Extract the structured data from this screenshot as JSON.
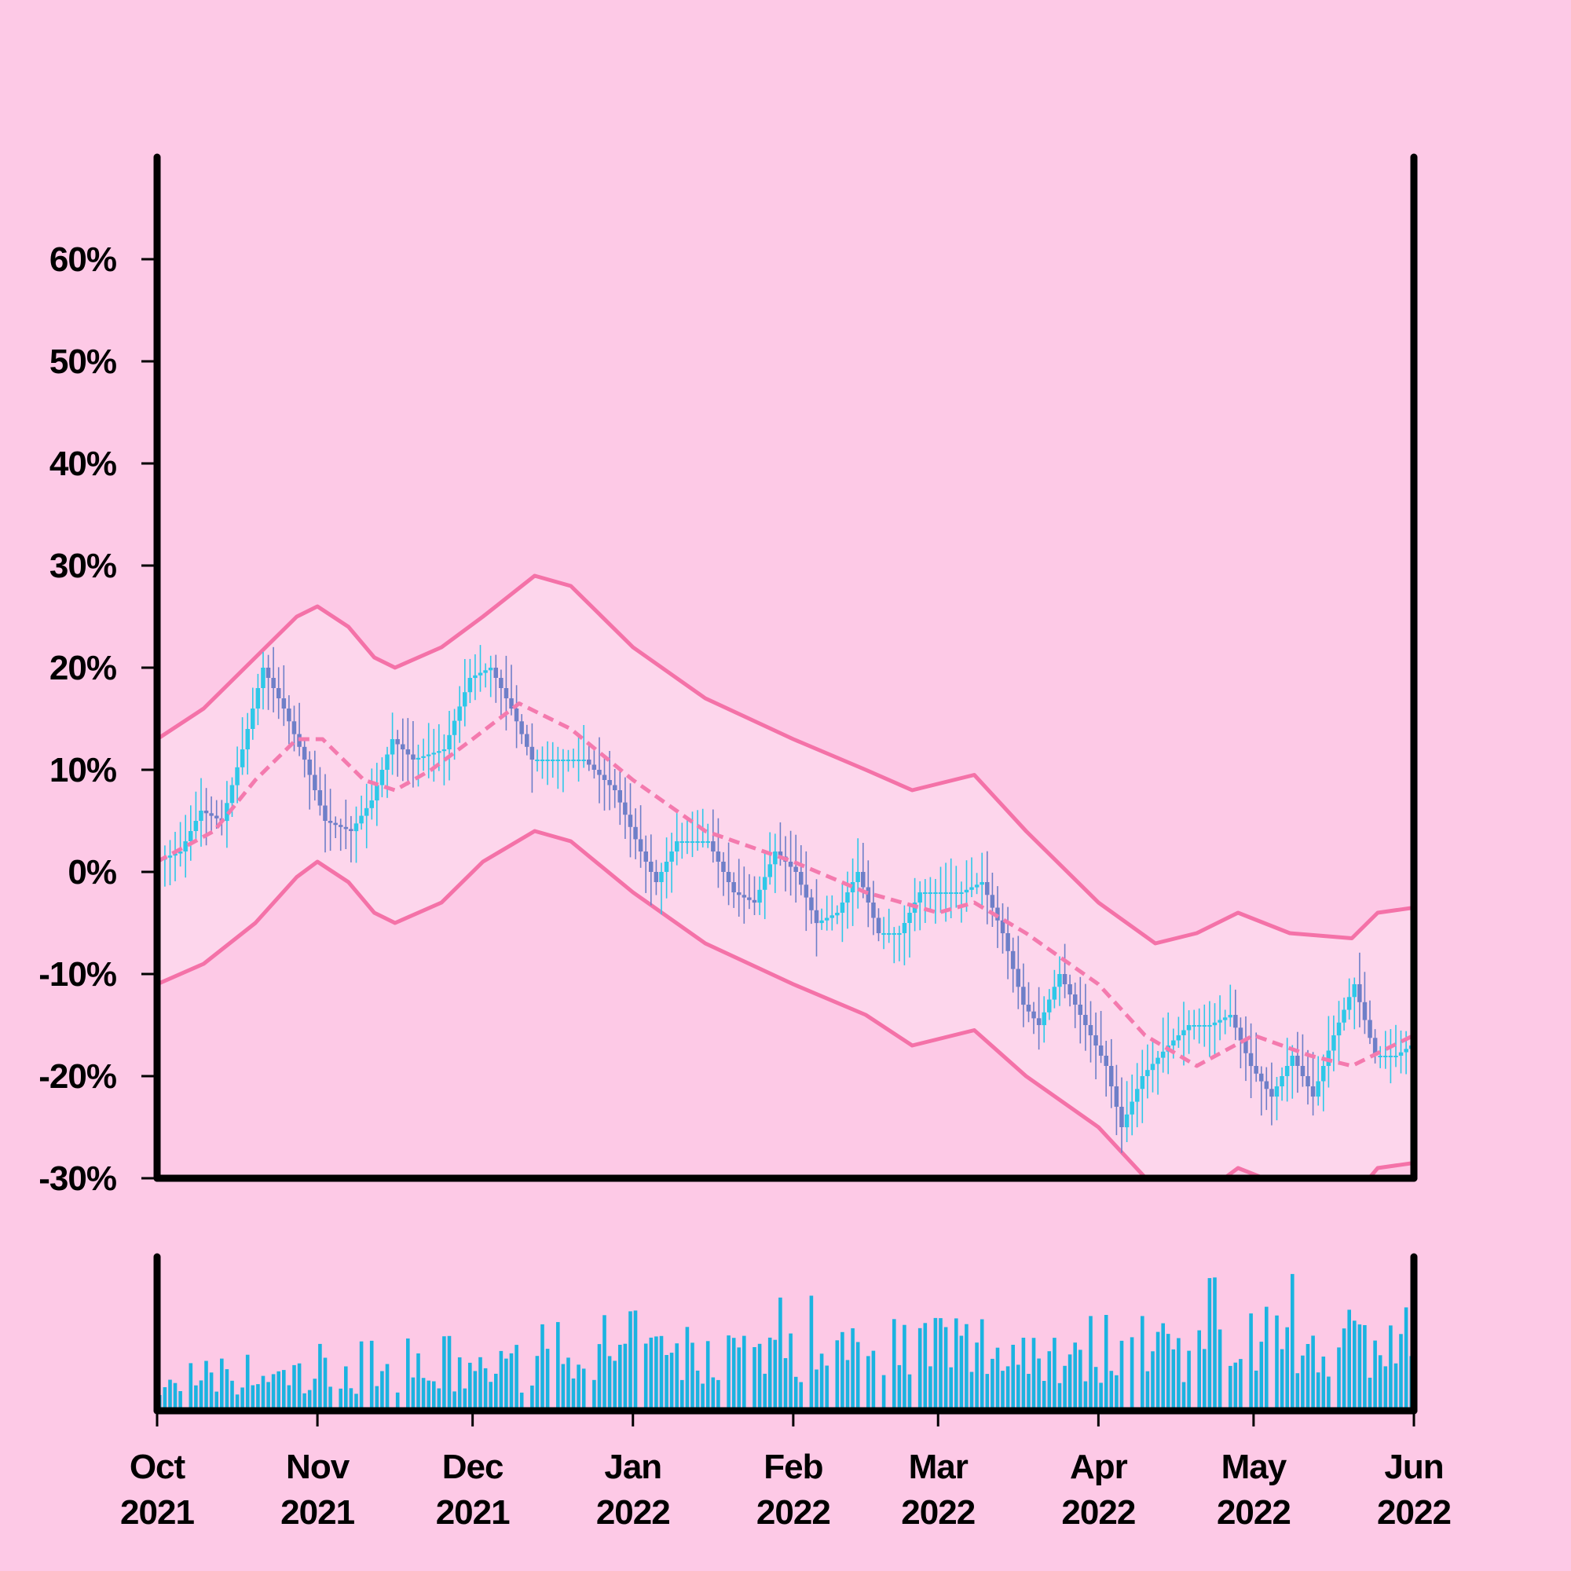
{
  "chart_data": {
    "type": "candlestick",
    "title": "",
    "xlabel": "",
    "ylabel": "",
    "yunit": "%",
    "ylim": [
      -30,
      70
    ],
    "yticks": [
      -30,
      -20,
      -10,
      0,
      10,
      20,
      30,
      40,
      50,
      60
    ],
    "ytick_labels": [
      "-30%",
      "-20%",
      "-10%",
      "0%",
      "10%",
      "20%",
      "30%",
      "40%",
      "50%",
      "60%"
    ],
    "xrange": [
      "2021-10-01",
      "2022-06-01"
    ],
    "xticks": [
      {
        "date": "2021-10-01",
        "month": "Oct",
        "year": "2021"
      },
      {
        "date": "2021-11-01",
        "month": "Nov",
        "year": "2021"
      },
      {
        "date": "2021-12-01",
        "month": "Dec",
        "year": "2021"
      },
      {
        "date": "2022-01-01",
        "month": "Jan",
        "year": "2022"
      },
      {
        "date": "2022-02-01",
        "month": "Feb",
        "year": "2022"
      },
      {
        "date": "2022-03-01",
        "month": "Mar",
        "year": "2022"
      },
      {
        "date": "2022-04-01",
        "month": "Apr",
        "year": "2022"
      },
      {
        "date": "2022-05-01",
        "month": "May",
        "year": "2022"
      },
      {
        "date": "2022-06-01",
        "month": "Jun",
        "year": "2022"
      }
    ],
    "price_path": [
      {
        "date": "2021-10-01",
        "value": 1
      },
      {
        "date": "2021-10-06",
        "value": 2
      },
      {
        "date": "2021-10-10",
        "value": 6
      },
      {
        "date": "2021-10-14",
        "value": 5
      },
      {
        "date": "2021-10-18",
        "value": 12
      },
      {
        "date": "2021-10-22",
        "value": 20
      },
      {
        "date": "2021-10-26",
        "value": 16
      },
      {
        "date": "2021-10-30",
        "value": 11
      },
      {
        "date": "2021-11-03",
        "value": 5
      },
      {
        "date": "2021-11-08",
        "value": 4
      },
      {
        "date": "2021-11-12",
        "value": 7
      },
      {
        "date": "2021-11-16",
        "value": 13
      },
      {
        "date": "2021-11-20",
        "value": 11
      },
      {
        "date": "2021-11-26",
        "value": 12
      },
      {
        "date": "2021-12-01",
        "value": 19
      },
      {
        "date": "2021-12-05",
        "value": 20
      },
      {
        "date": "2021-12-09",
        "value": 16
      },
      {
        "date": "2021-12-13",
        "value": 11
      },
      {
        "date": "2021-12-18",
        "value": 11
      },
      {
        "date": "2021-12-23",
        "value": 11
      },
      {
        "date": "2021-12-29",
        "value": 8
      },
      {
        "date": "2022-01-03",
        "value": 2
      },
      {
        "date": "2022-01-06",
        "value": -1
      },
      {
        "date": "2022-01-10",
        "value": 3
      },
      {
        "date": "2022-01-16",
        "value": 3
      },
      {
        "date": "2022-01-21",
        "value": -2
      },
      {
        "date": "2022-01-25",
        "value": -3
      },
      {
        "date": "2022-01-29",
        "value": 2
      },
      {
        "date": "2022-02-02",
        "value": 0
      },
      {
        "date": "2022-02-06",
        "value": -5
      },
      {
        "date": "2022-02-10",
        "value": -4
      },
      {
        "date": "2022-02-14",
        "value": 0
      },
      {
        "date": "2022-02-18",
        "value": -6
      },
      {
        "date": "2022-02-22",
        "value": -6
      },
      {
        "date": "2022-02-26",
        "value": -2
      },
      {
        "date": "2022-03-02",
        "value": -2
      },
      {
        "date": "2022-03-06",
        "value": -2
      },
      {
        "date": "2022-03-10",
        "value": -1
      },
      {
        "date": "2022-03-14",
        "value": -6
      },
      {
        "date": "2022-03-18",
        "value": -13
      },
      {
        "date": "2022-03-21",
        "value": -15
      },
      {
        "date": "2022-03-25",
        "value": -10
      },
      {
        "date": "2022-03-29",
        "value": -14
      },
      {
        "date": "2022-04-03",
        "value": -19
      },
      {
        "date": "2022-04-06",
        "value": -25
      },
      {
        "date": "2022-04-10",
        "value": -20
      },
      {
        "date": "2022-04-15",
        "value": -17
      },
      {
        "date": "2022-04-19",
        "value": -15
      },
      {
        "date": "2022-04-23",
        "value": -15
      },
      {
        "date": "2022-04-27",
        "value": -14
      },
      {
        "date": "2022-05-01",
        "value": -19
      },
      {
        "date": "2022-05-05",
        "value": -22
      },
      {
        "date": "2022-05-09",
        "value": -18
      },
      {
        "date": "2022-05-13",
        "value": -22
      },
      {
        "date": "2022-05-17",
        "value": -16
      },
      {
        "date": "2022-05-21",
        "value": -11
      },
      {
        "date": "2022-05-25",
        "value": -18
      },
      {
        "date": "2022-05-29",
        "value": -18
      },
      {
        "date": "2022-06-01",
        "value": -17
      }
    ],
    "moving_average": [
      {
        "date": "2021-10-01",
        "value": 1
      },
      {
        "date": "2021-10-12",
        "value": 4
      },
      {
        "date": "2021-10-20",
        "value": 9
      },
      {
        "date": "2021-10-28",
        "value": 13
      },
      {
        "date": "2021-11-02",
        "value": 13
      },
      {
        "date": "2021-11-10",
        "value": 9
      },
      {
        "date": "2021-11-16",
        "value": 8
      },
      {
        "date": "2021-11-23",
        "value": 10
      },
      {
        "date": "2021-12-01",
        "value": 13
      },
      {
        "date": "2021-12-10",
        "value": 16.5
      },
      {
        "date": "2021-12-20",
        "value": 14
      },
      {
        "date": "2022-01-01",
        "value": 9
      },
      {
        "date": "2022-01-15",
        "value": 4
      },
      {
        "date": "2022-02-01",
        "value": 1
      },
      {
        "date": "2022-02-15",
        "value": -2
      },
      {
        "date": "2022-03-01",
        "value": -4
      },
      {
        "date": "2022-03-08",
        "value": -3
      },
      {
        "date": "2022-03-18",
        "value": -6
      },
      {
        "date": "2022-04-01",
        "value": -11
      },
      {
        "date": "2022-04-10",
        "value": -16
      },
      {
        "date": "2022-04-20",
        "value": -19
      },
      {
        "date": "2022-05-01",
        "value": -16
      },
      {
        "date": "2022-05-12",
        "value": -18
      },
      {
        "date": "2022-05-20",
        "value": -19
      },
      {
        "date": "2022-06-01",
        "value": -16
      }
    ],
    "upper_band": [
      {
        "date": "2021-10-01",
        "value": 13
      },
      {
        "date": "2021-10-10",
        "value": 16
      },
      {
        "date": "2021-10-20",
        "value": 21
      },
      {
        "date": "2021-10-28",
        "value": 25
      },
      {
        "date": "2021-11-01",
        "value": 26
      },
      {
        "date": "2021-11-07",
        "value": 24
      },
      {
        "date": "2021-11-12",
        "value": 21
      },
      {
        "date": "2021-11-16",
        "value": 20
      },
      {
        "date": "2021-11-25",
        "value": 22
      },
      {
        "date": "2021-12-03",
        "value": 25
      },
      {
        "date": "2021-12-13",
        "value": 29
      },
      {
        "date": "2021-12-20",
        "value": 28
      },
      {
        "date": "2022-01-01",
        "value": 22
      },
      {
        "date": "2022-01-15",
        "value": 17
      },
      {
        "date": "2022-02-01",
        "value": 13
      },
      {
        "date": "2022-02-15",
        "value": 10
      },
      {
        "date": "2022-02-24",
        "value": 8
      },
      {
        "date": "2022-03-08",
        "value": 9.5
      },
      {
        "date": "2022-03-18",
        "value": 4
      },
      {
        "date": "2022-04-01",
        "value": -3
      },
      {
        "date": "2022-04-12",
        "value": -7
      },
      {
        "date": "2022-04-20",
        "value": -6
      },
      {
        "date": "2022-04-28",
        "value": -4
      },
      {
        "date": "2022-05-08",
        "value": -6
      },
      {
        "date": "2022-05-20",
        "value": -6.5
      },
      {
        "date": "2022-05-25",
        "value": -4
      },
      {
        "date": "2022-06-01",
        "value": -3.5
      }
    ],
    "lower_band": [
      {
        "date": "2021-10-01",
        "value": -11
      },
      {
        "date": "2021-10-10",
        "value": -9
      },
      {
        "date": "2021-10-20",
        "value": -5
      },
      {
        "date": "2021-10-28",
        "value": -0.5
      },
      {
        "date": "2021-11-01",
        "value": 1
      },
      {
        "date": "2021-11-07",
        "value": -1
      },
      {
        "date": "2021-11-12",
        "value": -4
      },
      {
        "date": "2021-11-16",
        "value": -5
      },
      {
        "date": "2021-11-25",
        "value": -3
      },
      {
        "date": "2021-12-03",
        "value": 1
      },
      {
        "date": "2021-12-13",
        "value": 4
      },
      {
        "date": "2021-12-20",
        "value": 3
      },
      {
        "date": "2022-01-01",
        "value": -2
      },
      {
        "date": "2022-01-15",
        "value": -7
      },
      {
        "date": "2022-02-01",
        "value": -11
      },
      {
        "date": "2022-02-15",
        "value": -14
      },
      {
        "date": "2022-02-24",
        "value": -17
      },
      {
        "date": "2022-03-08",
        "value": -15.5
      },
      {
        "date": "2022-03-18",
        "value": -20
      },
      {
        "date": "2022-04-01",
        "value": -25
      },
      {
        "date": "2022-04-12",
        "value": -31
      },
      {
        "date": "2022-04-20",
        "value": -32
      },
      {
        "date": "2022-04-28",
        "value": -29
      },
      {
        "date": "2022-05-08",
        "value": -31
      },
      {
        "date": "2022-05-20",
        "value": -32
      },
      {
        "date": "2022-05-25",
        "value": -29
      },
      {
        "date": "2022-06-01",
        "value": -28.5
      }
    ],
    "volume_levels": [
      {
        "date": "2021-10-01",
        "value": 0.18
      },
      {
        "date": "2021-11-01",
        "value": 0.28
      },
      {
        "date": "2021-12-01",
        "value": 0.32
      },
      {
        "date": "2022-01-01",
        "value": 0.42
      },
      {
        "date": "2022-02-01",
        "value": 0.48
      },
      {
        "date": "2022-03-01",
        "value": 0.5
      },
      {
        "date": "2022-04-01",
        "value": 0.5
      },
      {
        "date": "2022-05-01",
        "value": 0.58
      },
      {
        "date": "2022-06-01",
        "value": 0.55
      }
    ],
    "grid": false,
    "legend": "none",
    "colors": {
      "background": "#fdc9e6",
      "axis": "#000000",
      "up_candle": "#2ec8e8",
      "down_candle": "#6e7fc8",
      "band_line": "#f472a8",
      "band_fill": "#fdd6ec",
      "moving_average": "#f47aae",
      "volume": "#1bb3e0"
    }
  }
}
